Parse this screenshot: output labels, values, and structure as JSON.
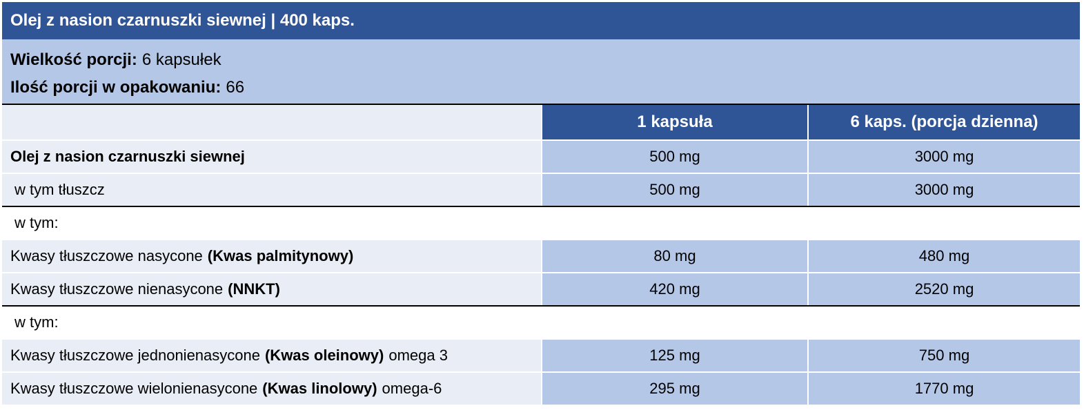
{
  "header": {
    "title": "Olej z nasion czarnuszki siewnej | 400 kaps."
  },
  "info": [
    {
      "label": "Wielkość porcji:",
      "value": "6 kapsułek"
    },
    {
      "label": "Ilość porcji w opakowaniu:",
      "value": "66"
    }
  ],
  "table": {
    "columns": [
      "1 kapsuła",
      "6 kaps. (porcja dzienna)"
    ],
    "rows": [
      {
        "segments": [
          {
            "text": "Olej z nasion czarnuszki siewnej",
            "bold": true
          }
        ],
        "values": [
          "500 mg",
          "3000 mg"
        ]
      },
      {
        "segments": [
          {
            "text": "w tym tłuszcz",
            "bold": false
          }
        ],
        "indent": true,
        "values": [
          "500 mg",
          "3000 mg"
        ],
        "rule_below": true
      },
      {
        "segments": [
          {
            "text": "w tym:",
            "bold": false
          }
        ],
        "indent": true,
        "section": true
      },
      {
        "segments": [
          {
            "text": "Kwasy tłuszczowe nasycone",
            "bold": false
          },
          {
            "text": "(Kwas palmitynowy)",
            "bold": true
          }
        ],
        "values": [
          "80 mg",
          "480 mg"
        ]
      },
      {
        "segments": [
          {
            "text": "Kwasy tłuszczowe nienasycone",
            "bold": false
          },
          {
            "text": "(NNKT)",
            "bold": true
          }
        ],
        "values": [
          "420 mg",
          "2520 mg"
        ],
        "rule_below": true
      },
      {
        "segments": [
          {
            "text": "w tym:",
            "bold": false
          }
        ],
        "indent": true,
        "section": true
      },
      {
        "segments": [
          {
            "text": "Kwasy tłuszczowe jednonienasycone",
            "bold": false
          },
          {
            "text": "(Kwas oleinowy)",
            "bold": true
          },
          {
            "text": "omega 3",
            "bold": false
          }
        ],
        "values": [
          "125 mg",
          "750 mg"
        ]
      },
      {
        "segments": [
          {
            "text": "Kwasy tłuszczowe wielonienasycone",
            "bold": false
          },
          {
            "text": "(Kwas linolowy)",
            "bold": true
          },
          {
            "text": "omega-6",
            "bold": false
          }
        ],
        "values": [
          "295 mg",
          "1770 mg"
        ]
      }
    ]
  }
}
